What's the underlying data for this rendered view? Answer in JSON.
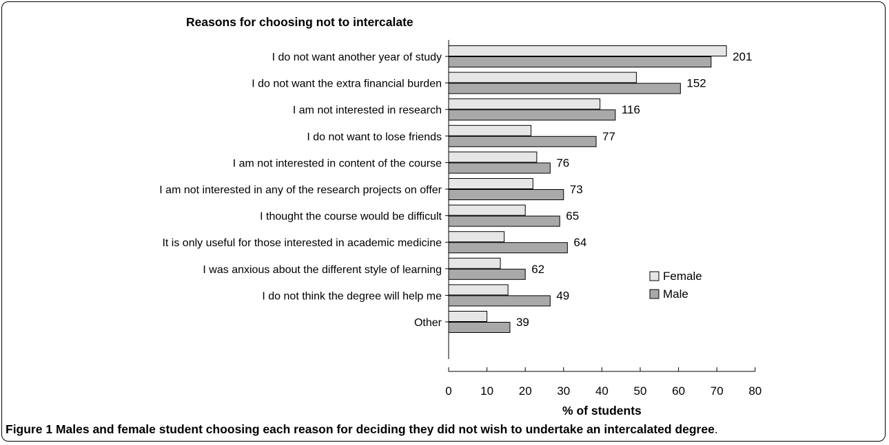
{
  "chart_data": {
    "type": "bar",
    "orientation": "horizontal",
    "title": "Reasons for choosing not to intercalate",
    "xlabel": "% of students",
    "ylabel": "",
    "xlim": [
      0,
      80
    ],
    "xticks": [
      0,
      10,
      20,
      30,
      40,
      50,
      60,
      70,
      80
    ],
    "categories": [
      "I do not want another year of study",
      "I do not want the extra financial burden",
      "I am not interested in research",
      "I do not want to lose friends",
      "I am not interested in content of the course",
      "I am not interested in any of the research projects on offer",
      "I thought the course would be difficult",
      "It is only useful for those interested in academic medicine",
      "I was anxious about the different style of learning",
      "I do not think the degree will help me",
      "Other"
    ],
    "series": [
      {
        "name": "Female",
        "color": "#e6e6e6",
        "values": [
          72.5,
          49,
          39.5,
          21.5,
          23,
          22,
          20,
          14.5,
          13.5,
          15.5,
          10
        ]
      },
      {
        "name": "Male",
        "color": "#a9a9a9",
        "values": [
          68.5,
          60.5,
          43.5,
          38.5,
          26.5,
          30,
          29,
          31,
          20,
          26.5,
          16
        ]
      }
    ],
    "totals": [
      201,
      152,
      116,
      77,
      76,
      73,
      65,
      64,
      62,
      49,
      39
    ],
    "legend": "right-middle",
    "grid": false
  },
  "caption": {
    "label": "Figure 1",
    "text": " Males and female student choosing each reason for deciding they did not wish to undertake an intercalated degree",
    "end": "."
  }
}
